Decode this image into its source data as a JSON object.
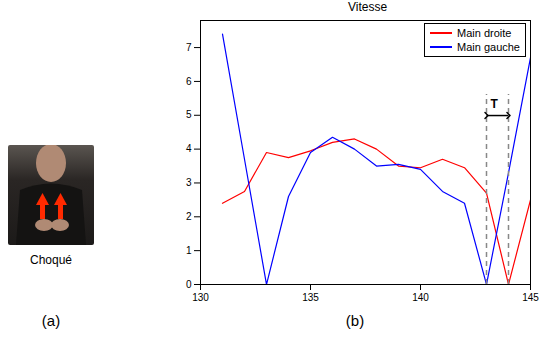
{
  "chart_data": {
    "type": "line",
    "title": "Vitesse",
    "x": [
      131,
      132,
      133,
      134,
      135,
      136,
      137,
      138,
      139,
      140,
      141,
      142,
      143,
      144,
      145
    ],
    "series": [
      {
        "name": "Main droite",
        "color": "#ff0000",
        "values": [
          2.4,
          2.75,
          3.9,
          3.75,
          3.95,
          4.2,
          4.3,
          4.0,
          3.5,
          3.45,
          3.7,
          3.45,
          2.7,
          0,
          2.5
        ]
      },
      {
        "name": "Main gauche",
        "color": "#0000ff",
        "values": [
          7.4,
          3.7,
          0,
          2.6,
          3.9,
          4.35,
          4.0,
          3.5,
          3.55,
          3.4,
          2.75,
          2.4,
          0,
          3.3,
          6.7
        ]
      }
    ],
    "xlim": [
      130,
      145
    ],
    "xticks": [
      130,
      135,
      140,
      145
    ],
    "ylim": [
      0,
      7.8
    ],
    "yticks": [
      0,
      1,
      2,
      3,
      4,
      5,
      6,
      7
    ],
    "legend": "top-right",
    "annotations": [
      {
        "text": "T",
        "x": [
          143,
          144
        ]
      }
    ]
  },
  "panels": [
    {
      "label": "(a)",
      "caption": "Choqué"
    },
    {
      "label": "(b)"
    }
  ]
}
